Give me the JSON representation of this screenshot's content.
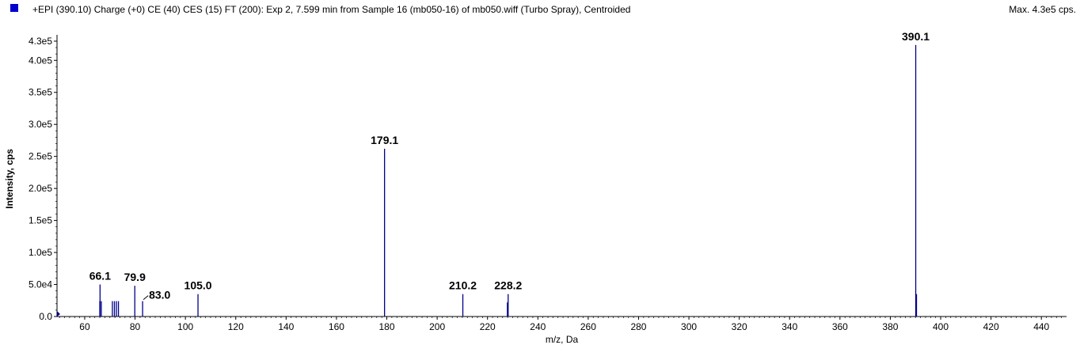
{
  "header": {
    "title": "+EPI (390.10) Charge (+0) CE (40) CES (15) FT (200): Exp 2, 7.599 min from Sample 16 (mb050-16) of mb050.wiff (Turbo Spray), Centroided",
    "max_label": "Max. 4.3e5 cps.",
    "legend_color": "#0000cc"
  },
  "chart_data": {
    "type": "bar",
    "title": "+EPI (390.10) Charge (+0) CE (40) CES (15) FT (200): Exp 2, 7.599 min from Sample 16 (mb050-16) of mb050.wiff (Turbo Spray), Centroided",
    "xlabel": "m/z, Da",
    "ylabel": "Intensity, cps",
    "xlim": [
      49,
      450
    ],
    "ylim": [
      0,
      430000
    ],
    "x_ticks": [
      60,
      80,
      100,
      120,
      140,
      160,
      180,
      200,
      220,
      240,
      260,
      280,
      300,
      320,
      340,
      360,
      380,
      400,
      420,
      440
    ],
    "x_tick_labels": [
      "60",
      "80",
      "100",
      "120",
      "140",
      "160",
      "180",
      "200",
      "220",
      "240",
      "260",
      "280",
      "300",
      "320",
      "340",
      "360",
      "380",
      "400",
      "420",
      "440"
    ],
    "y_ticks": [
      0,
      50000,
      100000,
      150000,
      200000,
      250000,
      300000,
      350000,
      400000,
      430000
    ],
    "y_tick_labels": [
      "0.0",
      "5.0e4",
      "1.0e5",
      "1.5e5",
      "2.0e5",
      "2.5e5",
      "3.0e5",
      "3.5e5",
      "4.0e5",
      "4.3e5"
    ],
    "line_color": "#00008b",
    "peaks": [
      {
        "mz": 49.2,
        "intensity": 6000
      },
      {
        "mz": 66.1,
        "intensity": 50000,
        "label": "66.1"
      },
      {
        "mz": 66.0,
        "intensity": 24000
      },
      {
        "mz": 66.6,
        "intensity": 24000
      },
      {
        "mz": 71.0,
        "intensity": 24000
      },
      {
        "mz": 71.8,
        "intensity": 24000
      },
      {
        "mz": 72.6,
        "intensity": 24000
      },
      {
        "mz": 73.4,
        "intensity": 24000
      },
      {
        "mz": 79.9,
        "intensity": 48000,
        "label": "79.9"
      },
      {
        "mz": 83.0,
        "intensity": 24000,
        "label": "83.0"
      },
      {
        "mz": 105.0,
        "intensity": 35000,
        "label": "105.0"
      },
      {
        "mz": 179.1,
        "intensity": 262000,
        "label": "179.1"
      },
      {
        "mz": 210.2,
        "intensity": 35000,
        "label": "210.2"
      },
      {
        "mz": 228.2,
        "intensity": 35000,
        "label": "228.2"
      },
      {
        "mz": 227.9,
        "intensity": 22000
      },
      {
        "mz": 390.1,
        "intensity": 424000,
        "label": "390.1"
      },
      {
        "mz": 390.4,
        "intensity": 35000
      }
    ]
  }
}
